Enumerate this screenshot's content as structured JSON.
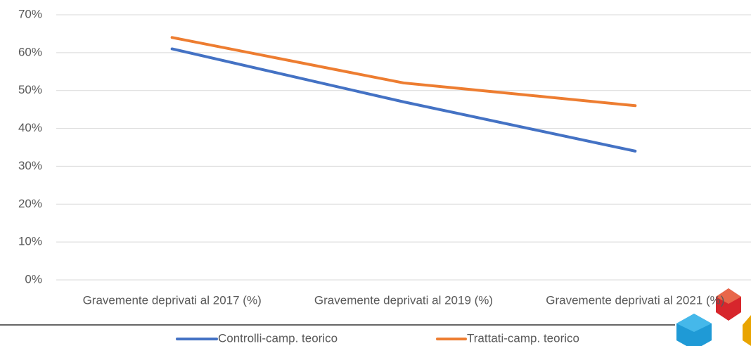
{
  "chart_data": {
    "type": "line",
    "categories": [
      "Gravemente deprivati al 2017 (%)",
      "Gravemente deprivati al 2019 (%)",
      "Gravemente deprivati al 2021 (%)"
    ],
    "series": [
      {
        "name": "Controlli-camp. teorico",
        "color": "#4472c4",
        "values": [
          61,
          47,
          34
        ]
      },
      {
        "name": "Trattati-camp. teorico",
        "color": "#ed7d31",
        "values": [
          64,
          52,
          46
        ]
      }
    ],
    "ylim": [
      0,
      70
    ],
    "yticks": [
      {
        "value": 0,
        "label": "0%"
      },
      {
        "value": 10,
        "label": "10%"
      },
      {
        "value": 20,
        "label": "20%"
      },
      {
        "value": 30,
        "label": "30%"
      },
      {
        "value": 40,
        "label": "40%"
      },
      {
        "value": 50,
        "label": "50%"
      },
      {
        "value": 60,
        "label": "60%"
      },
      {
        "value": 70,
        "label": "70%"
      }
    ],
    "grid": true,
    "legend": "bottom"
  }
}
